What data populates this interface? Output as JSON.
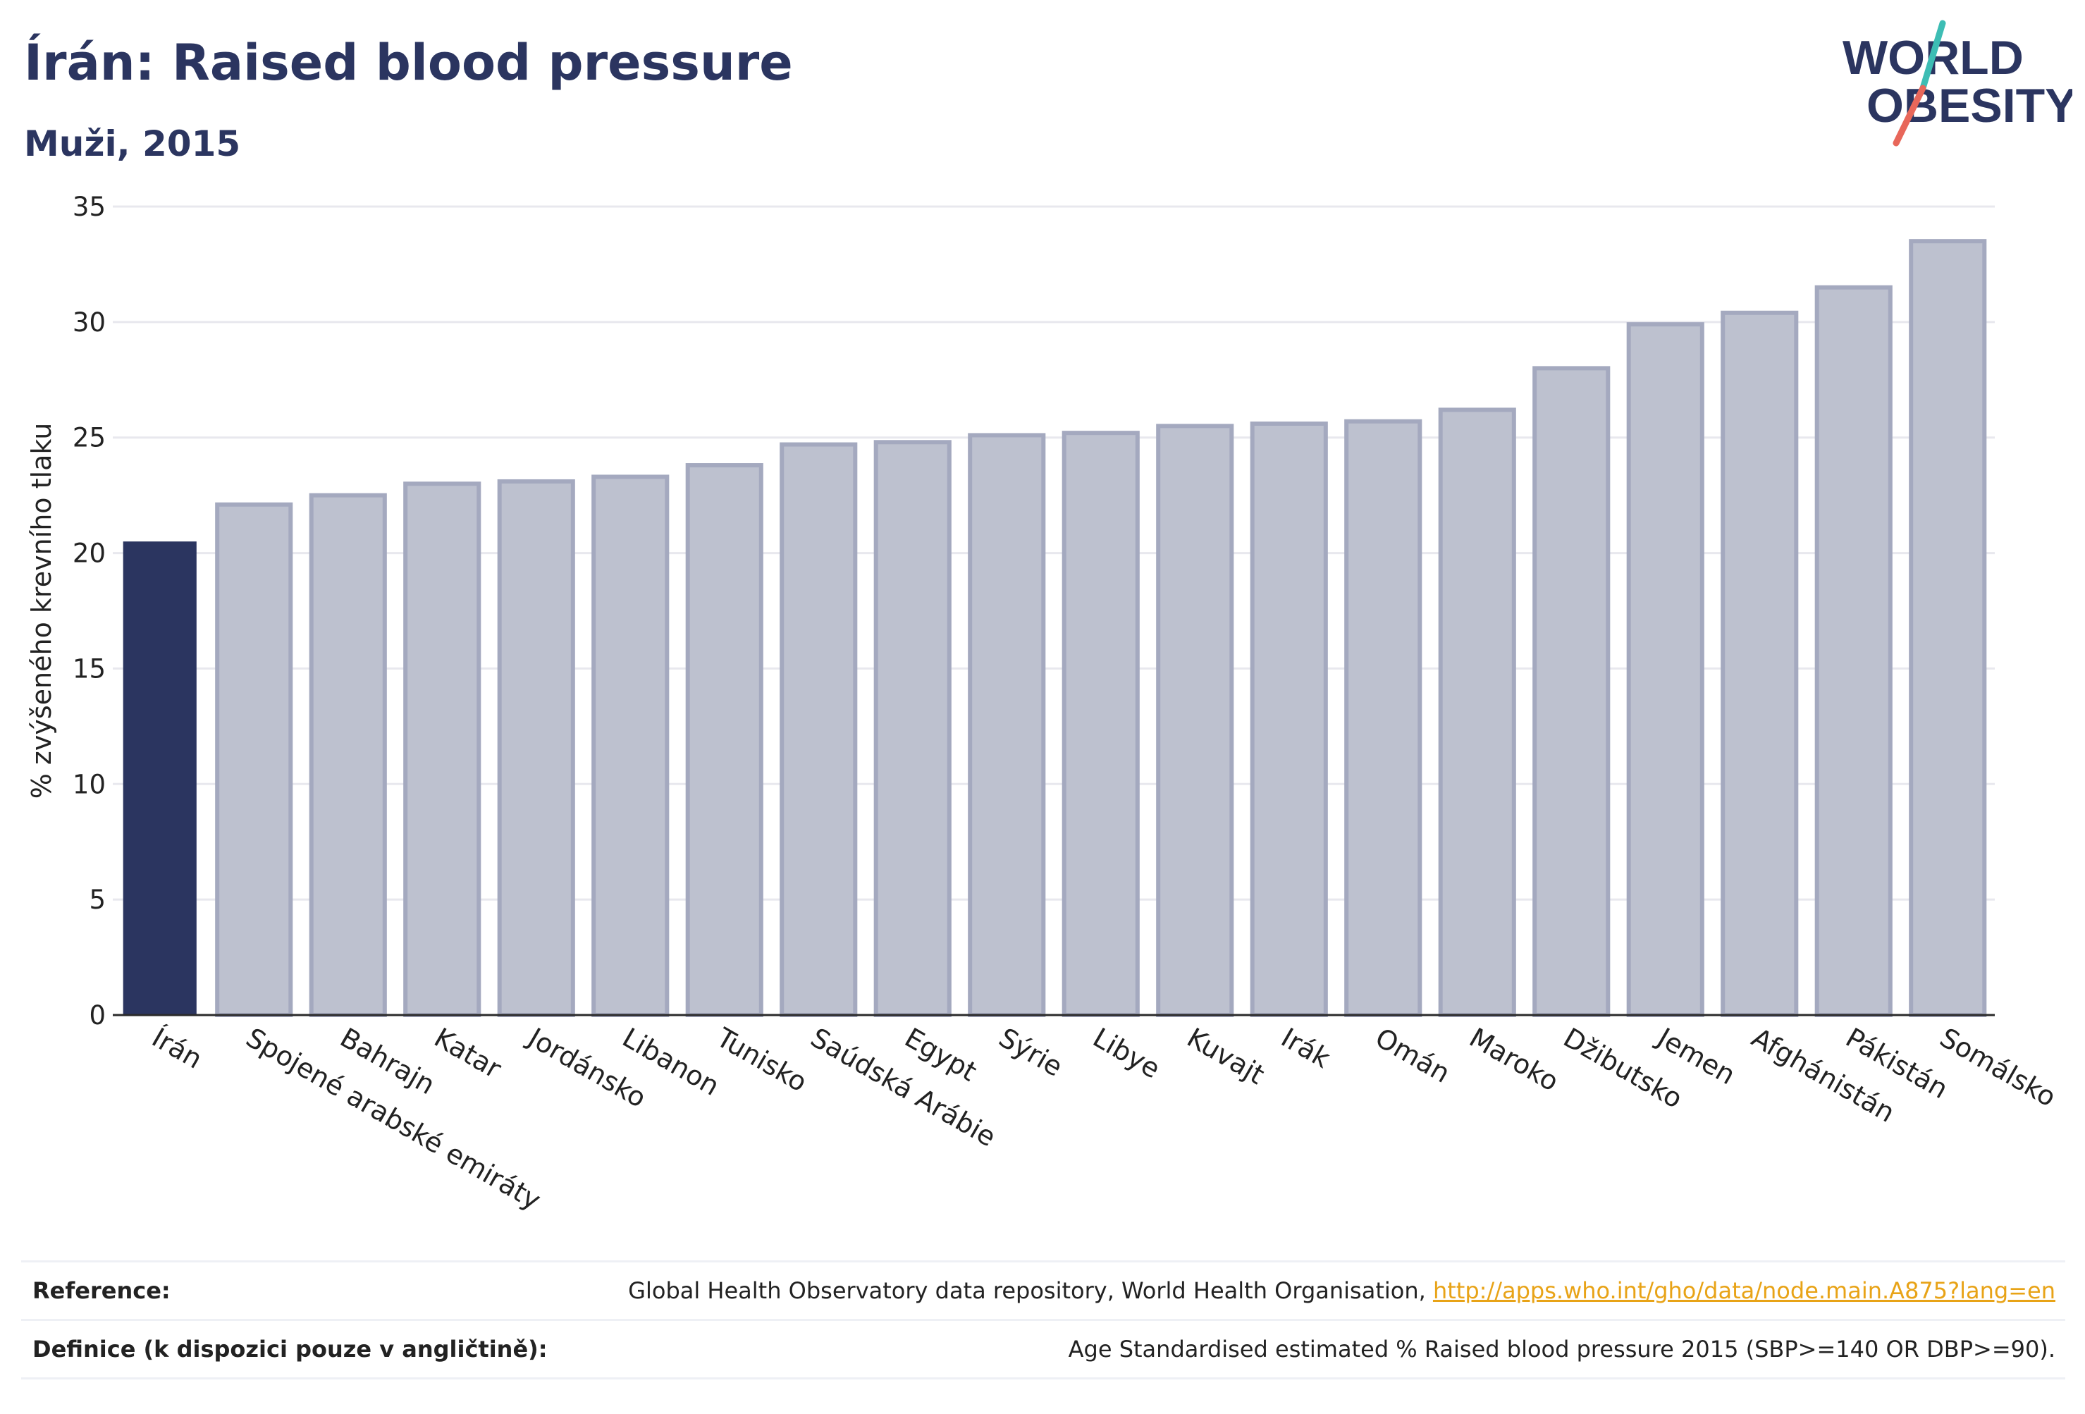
{
  "header": {
    "title": "Írán: Raised blood pressure",
    "subtitle": "Muži, 2015"
  },
  "logo": {
    "line1": "WORLD",
    "line2": "OBESITY",
    "colors": {
      "text": "#2b3560",
      "teal": "#3dbdb4",
      "coral": "#e8675a"
    }
  },
  "chart_data": {
    "type": "bar",
    "title": "Írán: Raised blood pressure",
    "subtitle": "Muži, 2015",
    "xlabel": "",
    "ylabel": "% zvýšeného krevního tlaku",
    "ylim": [
      0,
      35
    ],
    "yticks": [
      0,
      5,
      10,
      15,
      20,
      25,
      30,
      35
    ],
    "grid": true,
    "highlight_category": "Írán",
    "colors": {
      "highlight": "#2b3560",
      "bar_fill": "#bdc1cf",
      "bar_stroke": "#a4a9bf",
      "grid": "#e8e8ee",
      "axis": "#2b2b2b"
    },
    "categories": [
      "Írán",
      "Spojené arabské emiráty",
      "Bahrajn",
      "Katar",
      "Jordánsko",
      "Libanon",
      "Tunisko",
      "Saúdská Arábie",
      "Egypt",
      "Sýrie",
      "Libye",
      "Kuvajt",
      "Irák",
      "Omán",
      "Maroko",
      "Džibutsko",
      "Jemen",
      "Afghánistán",
      "Pákistán",
      "Somálsko"
    ],
    "values": [
      20.5,
      22.1,
      22.5,
      23.0,
      23.1,
      23.3,
      23.8,
      24.7,
      24.8,
      25.1,
      25.2,
      25.5,
      25.6,
      25.7,
      26.2,
      28.0,
      29.9,
      30.4,
      31.5,
      33.5
    ]
  },
  "reference": {
    "rows": [
      {
        "label": "Reference:",
        "text": "Global Health Observatory data repository, World Health Organisation, ",
        "link": "http://apps.who.int/gho/data/node.main.A875?lang=en"
      },
      {
        "label": "Definice (k dispozici pouze v angličtině):",
        "text": "Age Standardised estimated % Raised blood pressure 2015 (SBP>=140 OR DBP>=90).",
        "link": ""
      }
    ]
  }
}
